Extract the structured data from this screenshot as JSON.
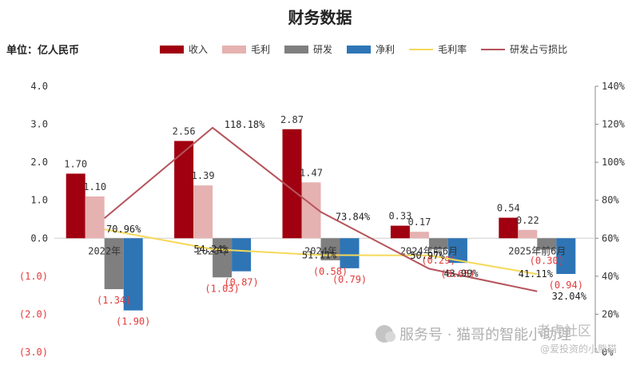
{
  "page": {
    "title": "财务数据",
    "unit": "单位：亿人民币",
    "watermark": "服务号 · 猫哥的智能小助理",
    "watermark_right": "老虎社区",
    "watermark_right_sub": "@爱投资的小熊猫"
  },
  "chart_data": {
    "type": "bar",
    "title": "财务数据",
    "categories": [
      "2022年",
      "2023年",
      "2024年",
      "2024年前6月",
      "2025年前6月"
    ],
    "series": [
      {
        "name": "收入",
        "color": "#a0000f",
        "values": [
          1.7,
          2.56,
          2.87,
          0.33,
          0.54
        ]
      },
      {
        "name": "毛利",
        "color": "#e6b1b1",
        "values": [
          1.1,
          1.39,
          1.47,
          0.17,
          0.22
        ]
      },
      {
        "name": "研发",
        "color": "#7f7f7f",
        "values": [
          -1.34,
          -1.03,
          -0.58,
          -0.29,
          -0.3
        ]
      },
      {
        "name": "净利",
        "color": "#2e75b6",
        "values": [
          -1.9,
          -0.87,
          -0.79,
          -0.65,
          -0.94
        ]
      }
    ],
    "line_series": [
      {
        "name": "毛利率",
        "color": "#f5d95a",
        "values": [
          64.71,
          54.24,
          51.11,
          50.97,
          41.11
        ],
        "labels": [
          "",
          "54.24%",
          "51.11%",
          "50.97%",
          "41.11%"
        ]
      },
      {
        "name": "研发占亏损比",
        "color": "#b5545c",
        "values": [
          70.53,
          118.18,
          73.84,
          43.99,
          32.04
        ],
        "labels": [
          "",
          "118.18%",
          "73.84%",
          "43.99%",
          "32.04%"
        ]
      }
    ],
    "bar_value_labels": {
      "收入": [
        "1.70",
        "2.56",
        "2.87",
        "0.33",
        "0.54"
      ],
      "毛利": [
        "1.10",
        "1.39",
        "1.47",
        "0.17",
        "0.22"
      ],
      "研发": [
        "(1.34)",
        "(1.03)",
        "(0.58)",
        "(0.29)",
        "(0.30)"
      ],
      "净利": [
        "(1.90)",
        "(0.87)",
        "(0.79)",
        "(0.65)",
        "(0.94)"
      ]
    },
    "overlap_label": "70.96%",
    "left_axis": {
      "ylim": [
        -3,
        4
      ],
      "ticks": [
        4,
        3,
        2,
        1,
        0,
        -1,
        -2,
        -3
      ],
      "tick_labels": [
        "4.0",
        "3.0",
        "2.0",
        "1.0",
        "0.0",
        "(1.0)",
        "(2.0)",
        "(3.0)"
      ]
    },
    "right_axis": {
      "ylim": [
        0,
        140
      ],
      "ticks": [
        140,
        120,
        100,
        80,
        60,
        40,
        20,
        0
      ],
      "tick_labels": [
        "140%",
        "120%",
        "100%",
        "80%",
        "60%",
        "40%",
        "20%",
        "0%"
      ]
    },
    "legend_position": "top",
    "grid": false
  }
}
